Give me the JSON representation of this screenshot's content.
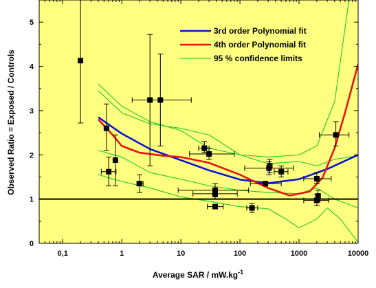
{
  "chart_data": {
    "type": "scatter",
    "xlabel": "Average SAR  / mW.kg",
    "xlabel_superscript": "-1",
    "ylabel": "Observed Ratio = Exposed / Controls",
    "x_scale": "log",
    "xlim": [
      0.04,
      10000
    ],
    "ylim": [
      0,
      5.5
    ],
    "x_ticks": [
      0.1,
      1,
      10,
      100,
      1000,
      10000
    ],
    "x_tick_labels": [
      "0,1",
      "1",
      "10",
      "100",
      "1000",
      "10000"
    ],
    "y_ticks": [
      0,
      1,
      2,
      3,
      4,
      5
    ],
    "y_tick_labels": [
      "0",
      "1",
      "2",
      "3",
      "4",
      "5"
    ],
    "background_color": "#ffff80",
    "grid": false,
    "legend_position": "top-right",
    "reference_line": {
      "y": 1.0,
      "color": "#000000"
    },
    "legend": [
      {
        "label": "3rd order Polynomial fit",
        "color": "#0a14d2"
      },
      {
        "label": "4th order Polynomial fit",
        "color": "#e8140c"
      },
      {
        "label": "95 % confidence limits",
        "color": "#2ecc2e"
      }
    ],
    "points": [
      {
        "x": 0.2,
        "y": 4.13,
        "xerr": [
          0.2,
          0.2
        ],
        "yerr": [
          2.72,
          5.55
        ]
      },
      {
        "x": 0.55,
        "y": 2.6,
        "xerr": [
          0.55,
          0.55
        ],
        "yerr": [
          2.1,
          3.15
        ]
      },
      {
        "x": 0.6,
        "y": 1.62,
        "xerr": [
          0.45,
          0.8
        ],
        "yerr": [
          1.3,
          1.95
        ]
      },
      {
        "x": 0.78,
        "y": 1.88,
        "xerr": [
          0.78,
          0.78
        ],
        "yerr": [
          1.3,
          2.45
        ]
      },
      {
        "x": 2.0,
        "y": 1.35,
        "xerr": [
          1.8,
          2.3
        ],
        "yerr": [
          1.15,
          1.55
        ]
      },
      {
        "x": 3.0,
        "y": 3.24,
        "xerr": [
          1.5,
          4.5
        ],
        "yerr": [
          1.75,
          4.72
        ]
      },
      {
        "x": 4.5,
        "y": 3.24,
        "xerr": [
          3.0,
          15
        ],
        "yerr": [
          2.2,
          4.28
        ]
      },
      {
        "x": 25,
        "y": 2.15,
        "xerr": [
          20,
          30
        ],
        "yerr": [
          2.05,
          2.3
        ]
      },
      {
        "x": 30,
        "y": 2.02,
        "xerr": [
          14,
          80
        ],
        "yerr": [
          1.9,
          2.15
        ]
      },
      {
        "x": 38,
        "y": 1.2,
        "xerr": [
          9,
          140
        ],
        "yerr": [
          1.05,
          1.35
        ]
      },
      {
        "x": 38,
        "y": 1.12,
        "xerr": [
          16,
          90
        ],
        "yerr": [
          1.0,
          1.25
        ]
      },
      {
        "x": 38,
        "y": 0.83,
        "xerr": [
          28,
          52
        ],
        "yerr": [
          0.83,
          0.83
        ]
      },
      {
        "x": 160,
        "y": 0.8,
        "xerr": [
          130,
          200
        ],
        "yerr": [
          0.7,
          0.9
        ]
      },
      {
        "x": 270,
        "y": 1.35,
        "xerr": [
          150,
          500
        ],
        "yerr": [
          1.3,
          1.4
        ]
      },
      {
        "x": 310,
        "y": 1.7,
        "xerr": [
          120,
          800
        ],
        "yerr": [
          1.55,
          1.85
        ]
      },
      {
        "x": 320,
        "y": 1.75,
        "xerr": [
          300,
          340
        ],
        "yerr": [
          1.6,
          1.9
        ]
      },
      {
        "x": 500,
        "y": 1.62,
        "xerr": [
          380,
          650
        ],
        "yerr": [
          1.5,
          1.75
        ]
      },
      {
        "x": 2000,
        "y": 1.46,
        "xerr": [
          1200,
          3500
        ],
        "yerr": [
          1.35,
          1.6
        ]
      },
      {
        "x": 2100,
        "y": 1.07,
        "xerr": [
          2100,
          2100
        ],
        "yerr": [
          0.95,
          1.2
        ]
      },
      {
        "x": 2000,
        "y": 0.97,
        "xerr": [
          1200,
          3200
        ],
        "yerr": [
          0.85,
          1.1
        ]
      },
      {
        "x": 4200,
        "y": 2.45,
        "xerr": [
          2200,
          7000
        ],
        "yerr": [
          2.2,
          2.75
        ]
      }
    ],
    "series": [
      {
        "name": "3rd order Polynomial fit",
        "color": "#0a14d2",
        "x": [
          0.4,
          1,
          3,
          10,
          30,
          100,
          300,
          1000,
          3000,
          10000
        ],
        "y": [
          2.85,
          2.48,
          2.13,
          1.88,
          1.65,
          1.44,
          1.36,
          1.45,
          1.68,
          2.0
        ]
      },
      {
        "name": "4th order Polynomial fit",
        "color": "#e8140c",
        "x": [
          0.4,
          0.7,
          1,
          2,
          5,
          10,
          30,
          100,
          300,
          700,
          1500,
          2500,
          4000,
          6000,
          10000
        ],
        "y": [
          2.8,
          2.45,
          2.2,
          2.05,
          1.98,
          1.95,
          1.82,
          1.55,
          1.25,
          1.08,
          1.17,
          1.48,
          2.15,
          2.95,
          4.05
        ]
      },
      {
        "name": "95 % confidence limits",
        "color": "#2ecc2e",
        "x": [
          0.4,
          1,
          3,
          10,
          30,
          100,
          300,
          1000,
          2000,
          4000,
          7000
        ],
        "y": [
          3.6,
          3.1,
          2.75,
          2.55,
          2.15,
          2.0,
          1.95,
          2.0,
          2.2,
          3.2,
          5.5
        ]
      },
      {
        "name": "",
        "color": "#2ecc2e",
        "x": [
          0.4,
          1,
          3,
          10,
          30,
          100,
          300,
          1000,
          2000,
          4000,
          10000
        ],
        "y": [
          3.45,
          2.95,
          2.7,
          2.6,
          2.45,
          2.0,
          1.8,
          1.85,
          1.75,
          1.9,
          1.98
        ]
      },
      {
        "name": "",
        "color": "#2ecc2e",
        "x": [
          0.4,
          1,
          3,
          10,
          30,
          100,
          300,
          1000,
          2000,
          4000,
          10000
        ],
        "y": [
          2.1,
          1.95,
          1.6,
          1.45,
          1.3,
          1.2,
          1.15,
          1.12,
          1.25,
          1.0,
          0.8
        ]
      },
      {
        "name": "",
        "color": "#2ecc2e",
        "x": [
          0.4,
          1,
          3,
          10,
          30,
          100,
          300,
          600,
          1000,
          2000,
          3000,
          5000,
          10000
        ],
        "y": [
          1.55,
          1.4,
          1.25,
          1.05,
          0.95,
          0.83,
          0.78,
          0.55,
          0.35,
          0.55,
          0.8,
          0.55,
          0.02
        ]
      }
    ]
  }
}
